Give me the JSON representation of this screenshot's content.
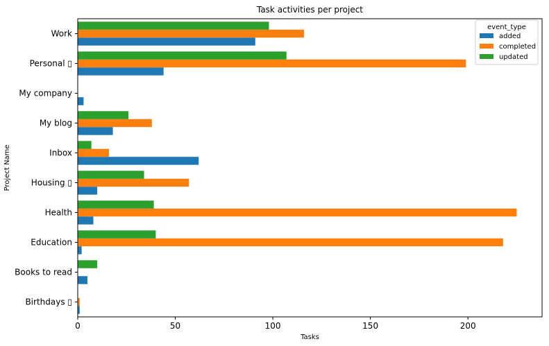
{
  "chart_data": {
    "type": "bar",
    "orientation": "horizontal",
    "title": "Task activities per project",
    "xlabel": "Tasks",
    "ylabel": "Project Name",
    "xlim": [
      0,
      238
    ],
    "xticks": [
      0,
      50,
      100,
      150,
      200
    ],
    "grid": false,
    "categories": [
      "Work",
      "Personal ▯",
      "My company",
      "My blog",
      "Inbox",
      "Housing ▯",
      "Health",
      "Education",
      "Books to read",
      "Birthdays ▯"
    ],
    "series": [
      {
        "name": "added",
        "color": "#1f77b4",
        "values": [
          91,
          44,
          3,
          18,
          62,
          10,
          8,
          2,
          5,
          1
        ]
      },
      {
        "name": "completed",
        "color": "#ff7f0e",
        "values": [
          116,
          199,
          0,
          38,
          16,
          57,
          225,
          218,
          0,
          1
        ]
      },
      {
        "name": "updated",
        "color": "#2ca02c",
        "values": [
          98,
          107,
          0,
          26,
          7,
          34,
          39,
          40,
          10,
          0
        ]
      }
    ],
    "legend": {
      "title": "event_type",
      "placement": "top-right"
    }
  }
}
